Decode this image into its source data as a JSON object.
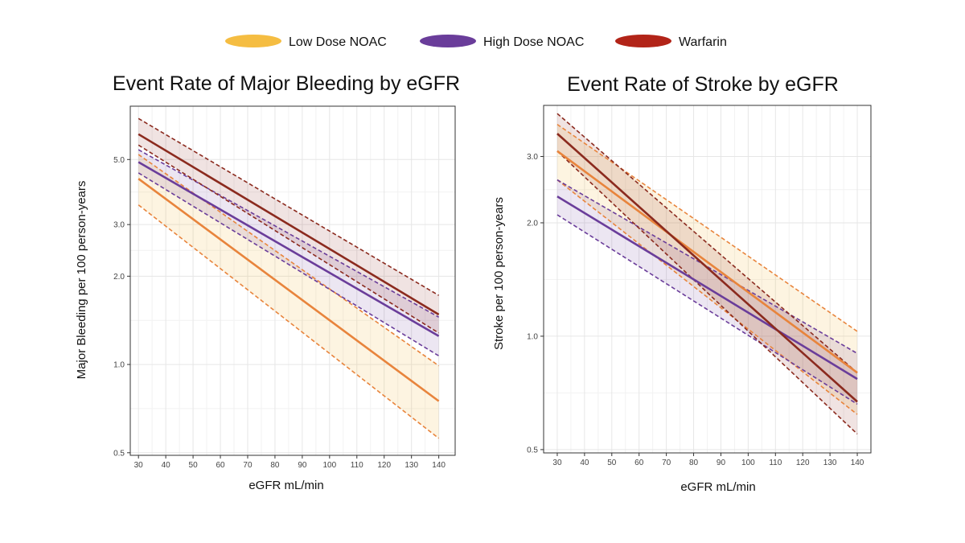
{
  "legend": [
    {
      "name": "Low Dose NOAC",
      "color": "#F5BD42"
    },
    {
      "name": "High Dose NOAC",
      "color": "#6A3D9A"
    },
    {
      "name": "Warfarin",
      "color": "#B22418"
    }
  ],
  "chart_data": [
    {
      "type": "line",
      "title": "Event Rate of Major Bleeding by eGFR",
      "xlabel": "eGFR mL/min",
      "ylabel": "Major Bleeding per 100 person-years",
      "yscale": "log",
      "xlim": [
        27,
        146
      ],
      "ylim": [
        0.49,
        7.6
      ],
      "x_ticks": [
        30,
        40,
        50,
        60,
        70,
        80,
        90,
        100,
        110,
        120,
        130,
        140
      ],
      "y_ticks": [
        0.5,
        1.0,
        2.0,
        3.0,
        5.0
      ],
      "y_tick_labels": [
        "0.5",
        "1.0",
        "2.0",
        "3.0",
        "5.0"
      ],
      "grid": true,
      "x": [
        30,
        140
      ],
      "series": [
        {
          "name": "Low Dose NOAC",
          "line_color": "#E8843C",
          "fill_color": "#F5BD42",
          "estimate": [
            4.3,
            0.75
          ],
          "lower": [
            3.5,
            0.56
          ],
          "upper": [
            5.2,
            0.99
          ]
        },
        {
          "name": "High Dose NOAC",
          "line_color": "#6A3D9A",
          "fill_color": "#6A3D9A",
          "estimate": [
            4.9,
            1.25
          ],
          "lower": [
            4.5,
            1.07
          ],
          "upper": [
            5.4,
            1.45
          ]
        },
        {
          "name": "Warfarin",
          "line_color": "#8B2A1E",
          "fill_color": "#8B2A1E",
          "estimate": [
            6.1,
            1.48
          ],
          "lower": [
            5.6,
            1.28
          ],
          "upper": [
            6.9,
            1.72
          ]
        }
      ]
    },
    {
      "type": "line",
      "title": "Event Rate of Stroke by eGFR",
      "xlabel": "eGFR mL/min",
      "ylabel": "Stroke per 100 person-years",
      "yscale": "log",
      "xlim": [
        25,
        145
      ],
      "ylim": [
        0.49,
        4.1
      ],
      "x_ticks": [
        30,
        40,
        50,
        60,
        70,
        80,
        90,
        100,
        110,
        120,
        130,
        140
      ],
      "y_ticks": [
        0.5,
        1.0,
        2.0,
        3.0
      ],
      "y_tick_labels": [
        "0.5",
        "1.0",
        "2.0",
        "3.0"
      ],
      "grid": true,
      "x": [
        30,
        140
      ],
      "series": [
        {
          "name": "Low Dose NOAC",
          "line_color": "#E8843C",
          "fill_color": "#F5BD42",
          "estimate": [
            3.1,
            0.8
          ],
          "lower": [
            2.6,
            0.62
          ],
          "upper": [
            3.65,
            1.03
          ]
        },
        {
          "name": "High Dose NOAC",
          "line_color": "#6A3D9A",
          "fill_color": "#6A3D9A",
          "estimate": [
            2.35,
            0.77
          ],
          "lower": [
            2.1,
            0.66
          ],
          "upper": [
            2.6,
            0.9
          ]
        },
        {
          "name": "Warfarin",
          "line_color": "#8B2A1E",
          "fill_color": "#8B2A1E",
          "estimate": [
            3.45,
            0.67
          ],
          "lower": [
            3.1,
            0.55
          ],
          "upper": [
            3.9,
            0.8
          ]
        }
      ]
    }
  ]
}
